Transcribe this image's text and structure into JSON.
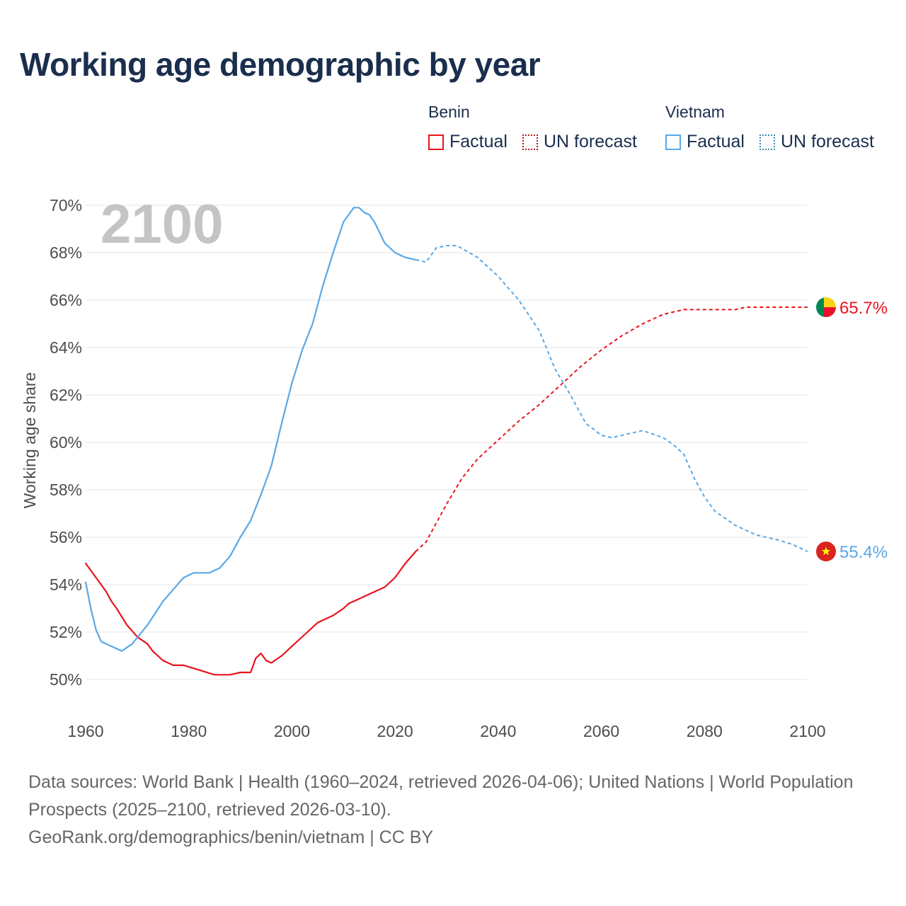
{
  "title": "Working age demographic by year",
  "legend": {
    "groups": [
      {
        "name": "Benin",
        "factual_label": "Factual",
        "forecast_label": "UN forecast"
      },
      {
        "name": "Vietnam",
        "factual_label": "Factual",
        "forecast_label": "UN forecast"
      }
    ]
  },
  "colors": {
    "benin": "#e8141e",
    "vietnam": "#5aa8e6",
    "grid": "#e6e6e6",
    "watermark": "#c4c4c4"
  },
  "footer": {
    "sources": "Data sources: World Bank | Health (1960–2024, retrieved 2026-04-06); United Nations | World Population Prospects (2025–2100, retrieved 2026-03-10).",
    "attribution": "GeoRank.org/demographics/benin/vietnam | CC BY"
  },
  "chart_data": {
    "type": "line",
    "year_watermark": "2100",
    "ylabel": "Working age share",
    "xlabel": "",
    "x_range": [
      1960,
      2100
    ],
    "ylim": [
      50,
      70
    ],
    "y_ticks": [
      50,
      52,
      54,
      56,
      58,
      60,
      62,
      64,
      66,
      68,
      70
    ],
    "y_tick_labels": [
      "50%",
      "52%",
      "54%",
      "56%",
      "58%",
      "60%",
      "62%",
      "64%",
      "66%",
      "68%",
      "70%"
    ],
    "x_ticks": [
      1960,
      1980,
      2000,
      2020,
      2040,
      2060,
      2080,
      2100
    ],
    "x_tick_labels": [
      "1960",
      "1980",
      "2000",
      "2020",
      "2040",
      "2060",
      "2080",
      "2100"
    ],
    "factual_end_year": 2024,
    "series": [
      {
        "name": "Benin",
        "color": "#e8141e",
        "flag_icon": "benin-flag-icon",
        "end_label": "65.7%",
        "points": [
          [
            1960,
            54.9
          ],
          [
            1962,
            54.3
          ],
          [
            1964,
            53.7
          ],
          [
            1965,
            53.3
          ],
          [
            1966,
            53.0
          ],
          [
            1968,
            52.3
          ],
          [
            1970,
            51.8
          ],
          [
            1972,
            51.5
          ],
          [
            1973,
            51.2
          ],
          [
            1975,
            50.8
          ],
          [
            1977,
            50.6
          ],
          [
            1979,
            50.6
          ],
          [
            1982,
            50.4
          ],
          [
            1985,
            50.2
          ],
          [
            1988,
            50.2
          ],
          [
            1990,
            50.3
          ],
          [
            1992,
            50.3
          ],
          [
            1993,
            50.9
          ],
          [
            1994,
            51.1
          ],
          [
            1995,
            50.8
          ],
          [
            1996,
            50.7
          ],
          [
            1998,
            51.0
          ],
          [
            2000,
            51.4
          ],
          [
            2003,
            52.0
          ],
          [
            2005,
            52.4
          ],
          [
            2008,
            52.7
          ],
          [
            2010,
            53.0
          ],
          [
            2011,
            53.2
          ],
          [
            2015,
            53.6
          ],
          [
            2018,
            53.9
          ],
          [
            2020,
            54.3
          ],
          [
            2022,
            54.9
          ],
          [
            2024,
            55.4
          ],
          [
            2026,
            55.8
          ],
          [
            2028,
            56.6
          ],
          [
            2030,
            57.4
          ],
          [
            2033,
            58.5
          ],
          [
            2036,
            59.3
          ],
          [
            2040,
            60.1
          ],
          [
            2044,
            60.9
          ],
          [
            2048,
            61.6
          ],
          [
            2052,
            62.4
          ],
          [
            2056,
            63.2
          ],
          [
            2060,
            63.9
          ],
          [
            2064,
            64.5
          ],
          [
            2068,
            65.0
          ],
          [
            2072,
            65.4
          ],
          [
            2076,
            65.6
          ],
          [
            2080,
            65.6
          ],
          [
            2086,
            65.6
          ],
          [
            2088,
            65.7
          ],
          [
            2095,
            65.7
          ],
          [
            2100,
            65.7
          ]
        ]
      },
      {
        "name": "Vietnam",
        "color": "#5aa8e6",
        "flag_icon": "vietnam-flag-icon",
        "end_label": "55.4%",
        "points": [
          [
            1960,
            54.1
          ],
          [
            1961,
            53.0
          ],
          [
            1962,
            52.1
          ],
          [
            1963,
            51.6
          ],
          [
            1965,
            51.4
          ],
          [
            1967,
            51.2
          ],
          [
            1969,
            51.5
          ],
          [
            1972,
            52.3
          ],
          [
            1975,
            53.3
          ],
          [
            1977,
            53.8
          ],
          [
            1979,
            54.3
          ],
          [
            1981,
            54.5
          ],
          [
            1984,
            54.5
          ],
          [
            1986,
            54.7
          ],
          [
            1988,
            55.2
          ],
          [
            1990,
            56.0
          ],
          [
            1992,
            56.7
          ],
          [
            1994,
            57.8
          ],
          [
            1996,
            59.0
          ],
          [
            1998,
            60.8
          ],
          [
            2000,
            62.5
          ],
          [
            2002,
            63.9
          ],
          [
            2004,
            65.0
          ],
          [
            2006,
            66.6
          ],
          [
            2008,
            68.0
          ],
          [
            2010,
            69.3
          ],
          [
            2012,
            69.9
          ],
          [
            2013,
            69.9
          ],
          [
            2014,
            69.7
          ],
          [
            2015,
            69.6
          ],
          [
            2016,
            69.3
          ],
          [
            2018,
            68.4
          ],
          [
            2020,
            68.0
          ],
          [
            2022,
            67.8
          ],
          [
            2024,
            67.7
          ],
          [
            2026,
            67.6
          ],
          [
            2028,
            68.2
          ],
          [
            2030,
            68.3
          ],
          [
            2032,
            68.3
          ],
          [
            2036,
            67.8
          ],
          [
            2040,
            67.0
          ],
          [
            2044,
            66.0
          ],
          [
            2048,
            64.7
          ],
          [
            2051,
            63.1
          ],
          [
            2054,
            62.0
          ],
          [
            2057,
            60.8
          ],
          [
            2060,
            60.3
          ],
          [
            2062,
            60.2
          ],
          [
            2064,
            60.3
          ],
          [
            2066,
            60.4
          ],
          [
            2068,
            60.5
          ],
          [
            2072,
            60.2
          ],
          [
            2074,
            59.9
          ],
          [
            2076,
            59.5
          ],
          [
            2078,
            58.5
          ],
          [
            2080,
            57.7
          ],
          [
            2082,
            57.1
          ],
          [
            2084,
            56.8
          ],
          [
            2086,
            56.5
          ],
          [
            2090,
            56.1
          ],
          [
            2094,
            55.9
          ],
          [
            2097,
            55.7
          ],
          [
            2100,
            55.4
          ]
        ]
      }
    ]
  }
}
